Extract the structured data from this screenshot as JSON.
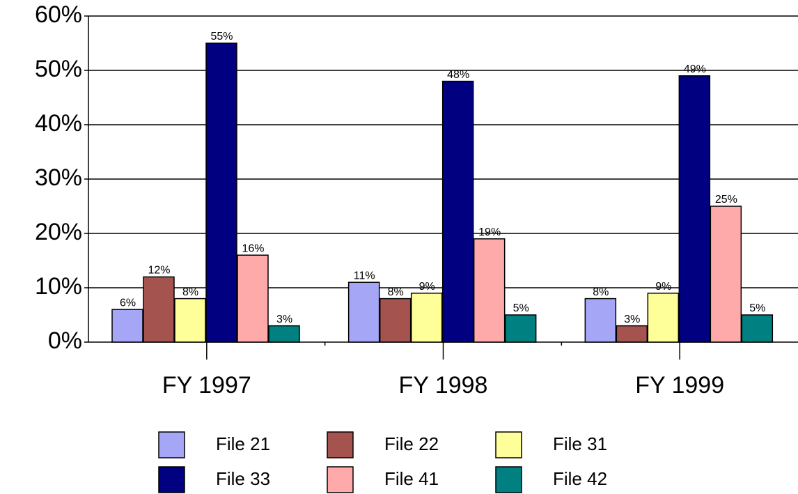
{
  "chart_data": {
    "type": "bar",
    "categories": [
      "FY 1997",
      "FY 1998",
      "FY 1999"
    ],
    "series": [
      {
        "name": "File 21",
        "color": "#a6a6f7",
        "values": [
          6,
          11,
          8
        ],
        "value_labels": [
          "6%",
          "11%",
          "8%"
        ]
      },
      {
        "name": "File 22",
        "color": "#a5534f",
        "values": [
          12,
          8,
          3
        ],
        "value_labels": [
          "12%",
          "8%",
          "3%"
        ]
      },
      {
        "name": "File 31",
        "color": "#ffff99",
        "values": [
          8,
          9,
          9
        ],
        "value_labels": [
          "8%",
          "9%",
          "9%"
        ]
      },
      {
        "name": "File 33",
        "color": "#000080",
        "values": [
          55,
          48,
          49
        ],
        "value_labels": [
          "55%",
          "48%",
          "49%"
        ]
      },
      {
        "name": "File 41",
        "color": "#ffaaaa",
        "values": [
          16,
          19,
          25
        ],
        "value_labels": [
          "16%",
          "19%",
          "25%"
        ]
      },
      {
        "name": "File 42",
        "color": "#008080",
        "values": [
          3,
          5,
          5
        ],
        "value_labels": [
          "3%",
          "5%",
          "5%"
        ]
      }
    ],
    "ylim": [
      0,
      60
    ],
    "yticks": [
      {
        "value": 0,
        "label": "0%"
      },
      {
        "value": 10,
        "label": "10%"
      },
      {
        "value": 20,
        "label": "20%"
      },
      {
        "value": 30,
        "label": "30%"
      },
      {
        "value": 40,
        "label": "40%"
      },
      {
        "value": 50,
        "label": "50%"
      },
      {
        "value": 60,
        "label": "60%"
      }
    ],
    "grid": true
  }
}
